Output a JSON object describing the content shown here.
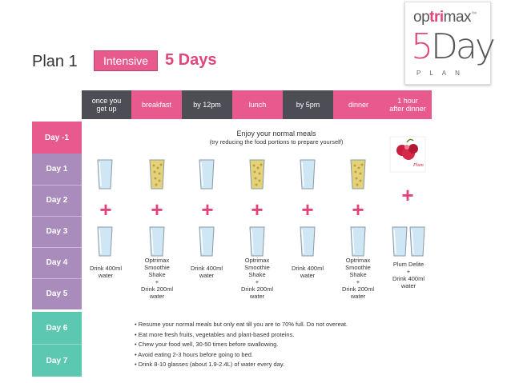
{
  "header": {
    "plan": "Plan 1",
    "badge": "Intensive",
    "days": "5 Days"
  },
  "logo": {
    "brand_pre": "op",
    "brand_mid": "tri",
    "brand_post": "max",
    "tm": "™",
    "five": "5",
    "day": "Day",
    "plan": "PLAN"
  },
  "columns": [
    {
      "line1": "once you",
      "line2": "get up"
    },
    {
      "line1": "breakfast",
      "line2": ""
    },
    {
      "line1": "by 12pm",
      "line2": ""
    },
    {
      "line1": "lunch",
      "line2": ""
    },
    {
      "line1": "by 5pm",
      "line2": ""
    },
    {
      "line1": "dinner",
      "line2": ""
    },
    {
      "line1": "1 hour",
      "line2": "after dinner"
    }
  ],
  "days": [
    "Day -1",
    "Day 1",
    "Day 2",
    "Day 3",
    "Day 4",
    "Day 5",
    "Day 6",
    "Day 7"
  ],
  "enjoy": {
    "main": "Enjoy your normal meals",
    "sub": "(try reducing the food portions to prepare yourself)"
  },
  "captions": {
    "water": [
      "Drink 400ml",
      "water"
    ],
    "shake": [
      "Optrimax",
      "Smoothie",
      "Shake",
      "+",
      "Drink 200ml",
      "water"
    ],
    "dinner": [
      "Optrimax",
      "Smoothie",
      "Shake",
      "+",
      "Drink 200ml",
      "water"
    ],
    "after": [
      "Plum Delite",
      "+",
      "Drink 400ml",
      "water"
    ]
  },
  "plus": "+",
  "tips": [
    "• Resume your normal meals but only eat till you are to 70% full. Do not overeat.",
    "• Eat more fresh fruits, vegetables and plant-based proteins.",
    "• Chew your food well, 30-50 times before swallowing.",
    "• Avoid eating 2-3 hours before going to bed.",
    "• Drink 8-10 glasses (about 1.9-2.4L) of water every day."
  ],
  "colors": {
    "pink": "#e85a8d",
    "purple": "#a98cbc",
    "teal": "#5cc8b2",
    "dark": "#4d4d56",
    "water": "#cfe6f4",
    "shake": "#e3d27a"
  }
}
